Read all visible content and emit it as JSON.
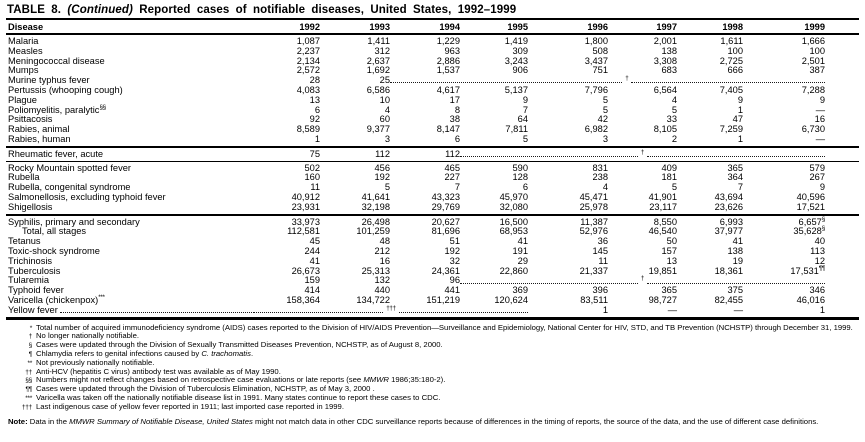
{
  "colors": {
    "ink": "#000000",
    "paper": "#ffffff"
  },
  "page": {
    "title_prefix": "TABLE 8.",
    "title_continued": "(Continued)",
    "title_rest": "Reported cases of notifiable diseases, United States, 1992–1999"
  },
  "table": {
    "columns": [
      "Disease",
      "1992",
      "1993",
      "1994",
      "1995",
      "1996",
      "1997",
      "1998",
      "1999"
    ],
    "sections": [
      {
        "divider": "thick",
        "rows": [
          {
            "label": "Malaria",
            "cells": [
              {
                "v": "1,087"
              },
              {
                "v": "1,411"
              },
              {
                "v": "1,229"
              },
              {
                "v": "1,419"
              },
              {
                "v": "1,800"
              },
              {
                "v": "2,001"
              },
              {
                "v": "1,611"
              },
              {
                "v": "1,666"
              }
            ]
          },
          {
            "label": "Measles",
            "cells": [
              {
                "v": "2,237"
              },
              {
                "v": "312"
              },
              {
                "v": "963"
              },
              {
                "v": "309"
              },
              {
                "v": "508"
              },
              {
                "v": "138"
              },
              {
                "v": "100"
              },
              {
                "v": "100"
              }
            ]
          },
          {
            "label": "Meningococcal disease",
            "cells": [
              {
                "v": "2,134"
              },
              {
                "v": "2,637"
              },
              {
                "v": "2,886"
              },
              {
                "v": "3,243"
              },
              {
                "v": "3,437"
              },
              {
                "v": "3,308"
              },
              {
                "v": "2,725"
              },
              {
                "v": "2,501"
              }
            ]
          },
          {
            "label": "Mumps",
            "cells": [
              {
                "v": "2,572"
              },
              {
                "v": "1,692"
              },
              {
                "v": "1,537"
              },
              {
                "v": "906"
              },
              {
                "v": "751"
              },
              {
                "v": "683"
              },
              {
                "v": "666"
              },
              {
                "v": "387"
              }
            ]
          },
          {
            "label": "Murine typhus fever",
            "cells": [
              {
                "v": "28"
              },
              {
                "v": "25"
              },
              {
                "dots": true,
                "span": 6,
                "marker": "†",
                "ratio": [
                  6,
                  5
                ]
              }
            ]
          },
          {
            "label": "Pertussis (whooping cough)",
            "cells": [
              {
                "v": "4,083"
              },
              {
                "v": "6,586"
              },
              {
                "v": "4,617"
              },
              {
                "v": "5,137"
              },
              {
                "v": "7,796"
              },
              {
                "v": "6,564"
              },
              {
                "v": "7,405"
              },
              {
                "v": "7,288"
              }
            ]
          },
          {
            "label": "Plague",
            "cells": [
              {
                "v": "13"
              },
              {
                "v": "10"
              },
              {
                "v": "17"
              },
              {
                "v": "9"
              },
              {
                "v": "5"
              },
              {
                "v": "4"
              },
              {
                "v": "9"
              },
              {
                "v": "9"
              }
            ]
          },
          {
            "label": "Poliomyelitis, paralytic",
            "label_sup": "§§",
            "cells": [
              {
                "v": "6"
              },
              {
                "v": "4"
              },
              {
                "v": "8"
              },
              {
                "v": "7"
              },
              {
                "v": "5"
              },
              {
                "v": "5"
              },
              {
                "v": "1"
              },
              {
                "v": "—"
              }
            ]
          },
          {
            "label": "Psittacosis",
            "cells": [
              {
                "v": "92"
              },
              {
                "v": "60"
              },
              {
                "v": "38"
              },
              {
                "v": "64"
              },
              {
                "v": "42"
              },
              {
                "v": "33"
              },
              {
                "v": "47"
              },
              {
                "v": "16"
              }
            ]
          },
          {
            "label": "Rabies, animal",
            "cells": [
              {
                "v": "8,589"
              },
              {
                "v": "9,377"
              },
              {
                "v": "8,147"
              },
              {
                "v": "7,811"
              },
              {
                "v": "6,982"
              },
              {
                "v": "8,105"
              },
              {
                "v": "7,259"
              },
              {
                "v": "6,730"
              }
            ]
          },
          {
            "label": "Rabies, human",
            "cells": [
              {
                "v": "1"
              },
              {
                "v": "3"
              },
              {
                "v": "6"
              },
              {
                "v": "5"
              },
              {
                "v": "3"
              },
              {
                "v": "2"
              },
              {
                "v": "1"
              },
              {
                "v": "—"
              }
            ]
          }
        ]
      },
      {
        "divider": "thin",
        "rows": [
          {
            "label": "Rheumatic fever, acute",
            "cells": [
              {
                "v": "75"
              },
              {
                "v": "112"
              },
              {
                "v": "112"
              },
              {
                "dots": true,
                "span": 5,
                "marker": "†",
                "ratio": [
                  1,
                  1
                ]
              }
            ]
          }
        ]
      },
      {
        "divider": "thick",
        "rows": [
          {
            "label": "Rocky Mountain spotted fever",
            "cells": [
              {
                "v": "502"
              },
              {
                "v": "456"
              },
              {
                "v": "465"
              },
              {
                "v": "590"
              },
              {
                "v": "831"
              },
              {
                "v": "409"
              },
              {
                "v": "365"
              },
              {
                "v": "579"
              }
            ]
          },
          {
            "label": "Rubella",
            "cells": [
              {
                "v": "160"
              },
              {
                "v": "192"
              },
              {
                "v": "227"
              },
              {
                "v": "128"
              },
              {
                "v": "238"
              },
              {
                "v": "181"
              },
              {
                "v": "364"
              },
              {
                "v": "267"
              }
            ]
          },
          {
            "label": "Rubella, congenital syndrome",
            "cells": [
              {
                "v": "11"
              },
              {
                "v": "5"
              },
              {
                "v": "7"
              },
              {
                "v": "6"
              },
              {
                "v": "4"
              },
              {
                "v": "5"
              },
              {
                "v": "7"
              },
              {
                "v": "9"
              }
            ]
          },
          {
            "label": "Salmonellosis, excluding typhoid fever",
            "cells": [
              {
                "v": "40,912"
              },
              {
                "v": "41,641"
              },
              {
                "v": "43,323"
              },
              {
                "v": "45,970"
              },
              {
                "v": "45,471"
              },
              {
                "v": "41,901"
              },
              {
                "v": "43,694"
              },
              {
                "v": "40,596"
              }
            ]
          },
          {
            "label": "Shigellosis",
            "cells": [
              {
                "v": "23,931"
              },
              {
                "v": "32,198"
              },
              {
                "v": "29,769"
              },
              {
                "v": "32,080"
              },
              {
                "v": "25,978"
              },
              {
                "v": "23,117"
              },
              {
                "v": "23,626"
              },
              {
                "v": "17,521"
              }
            ]
          }
        ]
      },
      {
        "divider": "bottom",
        "rows": [
          {
            "label": "Syphilis, primary and secondary",
            "cells": [
              {
                "v": "33,973"
              },
              {
                "v": "26,498"
              },
              {
                "v": "20,627"
              },
              {
                "v": "16,500"
              },
              {
                "v": "11,387"
              },
              {
                "v": "8,550"
              },
              {
                "v": "6,993"
              },
              {
                "v": "6,657",
                "sup": "§"
              }
            ]
          },
          {
            "label": "Total, all stages",
            "indent": true,
            "cells": [
              {
                "v": "112,581"
              },
              {
                "v": "101,259"
              },
              {
                "v": "81,696"
              },
              {
                "v": "68,953"
              },
              {
                "v": "52,976"
              },
              {
                "v": "46,540"
              },
              {
                "v": "37,977"
              },
              {
                "v": "35,628",
                "sup": "§"
              }
            ]
          },
          {
            "label": "Tetanus",
            "cells": [
              {
                "v": "45"
              },
              {
                "v": "48"
              },
              {
                "v": "51"
              },
              {
                "v": "41"
              },
              {
                "v": "36"
              },
              {
                "v": "50"
              },
              {
                "v": "41"
              },
              {
                "v": "40"
              }
            ]
          },
          {
            "label": "Toxic-shock syndrome",
            "cells": [
              {
                "v": "244"
              },
              {
                "v": "212"
              },
              {
                "v": "192"
              },
              {
                "v": "191"
              },
              {
                "v": "145"
              },
              {
                "v": "157"
              },
              {
                "v": "138"
              },
              {
                "v": "113"
              }
            ]
          },
          {
            "label": "Trichinosis",
            "cells": [
              {
                "v": "41"
              },
              {
                "v": "16"
              },
              {
                "v": "32"
              },
              {
                "v": "29"
              },
              {
                "v": "11"
              },
              {
                "v": "13"
              },
              {
                "v": "19"
              },
              {
                "v": "12"
              }
            ]
          },
          {
            "label": "Tuberculosis",
            "cells": [
              {
                "v": "26,673"
              },
              {
                "v": "25,313"
              },
              {
                "v": "24,361"
              },
              {
                "v": "22,860"
              },
              {
                "v": "21,337"
              },
              {
                "v": "19,851"
              },
              {
                "v": "18,361"
              },
              {
                "v": "17,531",
                "sup": "¶¶"
              }
            ]
          },
          {
            "label": "Tularemia",
            "cells": [
              {
                "v": "159"
              },
              {
                "v": "132"
              },
              {
                "v": "96"
              },
              {
                "dots": true,
                "span": 5,
                "marker": "†",
                "ratio": [
                  1,
                  1
                ]
              }
            ]
          },
          {
            "label": "Typhoid fever",
            "cells": [
              {
                "v": "414"
              },
              {
                "v": "440"
              },
              {
                "v": "441"
              },
              {
                "v": "369"
              },
              {
                "v": "396"
              },
              {
                "v": "365"
              },
              {
                "v": "375"
              },
              {
                "v": "346"
              }
            ]
          },
          {
            "label": "Varicella (chickenpox)",
            "label_sup": "***",
            "cells": [
              {
                "v": "158,364"
              },
              {
                "v": "134,722"
              },
              {
                "v": "151,219"
              },
              {
                "v": "120,624"
              },
              {
                "v": "83,511"
              },
              {
                "v": "98,727"
              },
              {
                "v": "82,455"
              },
              {
                "v": "46,016"
              }
            ]
          },
          {
            "label": "Yellow fever",
            "label_dots": true,
            "cells": [
              {
                "dots": true,
                "span": 4,
                "marker": "†††",
                "ratio": [
                  1,
                  1
                ]
              },
              {
                "v": "1"
              },
              {
                "v": "—"
              },
              {
                "v": "—"
              },
              {
                "v": "1"
              }
            ]
          }
        ]
      }
    ]
  },
  "footnotes": [
    {
      "marker": "*",
      "pre": "Total number of acquired immunodeficiency syndrome (AIDS) cases reported to the Division of HIV/AIDS Prevention—Surveillance and Epidemiology, National Center for HIV, STD, and TB Prevention (NCHSTP) through December 31, 1999.",
      "italic": "",
      "post": ""
    },
    {
      "marker": "†",
      "pre": "No longer nationally notifiable.",
      "italic": "",
      "post": ""
    },
    {
      "marker": "§",
      "pre": "Cases were updated through the Division of Sexually Transmitted Diseases Prevention, NCHSTP, as of August 8, 2000.",
      "italic": "",
      "post": ""
    },
    {
      "marker": "¶",
      "pre": "Chlamydia refers to genital infections caused by ",
      "italic": "C. trachomatis",
      "post": "."
    },
    {
      "marker": "**",
      "pre": "Not previously nationally notifiable.",
      "italic": "",
      "post": ""
    },
    {
      "marker": "††",
      "pre": "Anti-HCV (hepatitis C virus) antibody test was available as of May 1990.",
      "italic": "",
      "post": ""
    },
    {
      "marker": "§§",
      "pre": "Numbers might not reflect changes based on retrospective case evaluations or late reports (see ",
      "italic": "MMWR",
      "post": " 1986;35:180-2)."
    },
    {
      "marker": "¶¶",
      "pre": "Cases were updated through the Division of Tuberculosis Elimination, NCHSTP, as of May 3, 2000 .",
      "italic": "",
      "post": ""
    },
    {
      "marker": "***",
      "pre": "Varicella was taken off the nationally notifiable disease list in 1991.  Many states continue to report these cases to CDC.",
      "italic": "",
      "post": ""
    },
    {
      "marker": "†††",
      "pre": "Last indigenous case of yellow fever reported in 1911; last imported case reported in 1999.",
      "italic": "",
      "post": ""
    }
  ],
  "note": {
    "label": "Note:",
    "pre": " Data in the ",
    "italic": "MMWR Summary of Notifiable Disease, United States",
    "post": " might not match data in other CDC surveillance reports because of differences in the timing of reports, the source of the data, and the use of different case definitions."
  }
}
